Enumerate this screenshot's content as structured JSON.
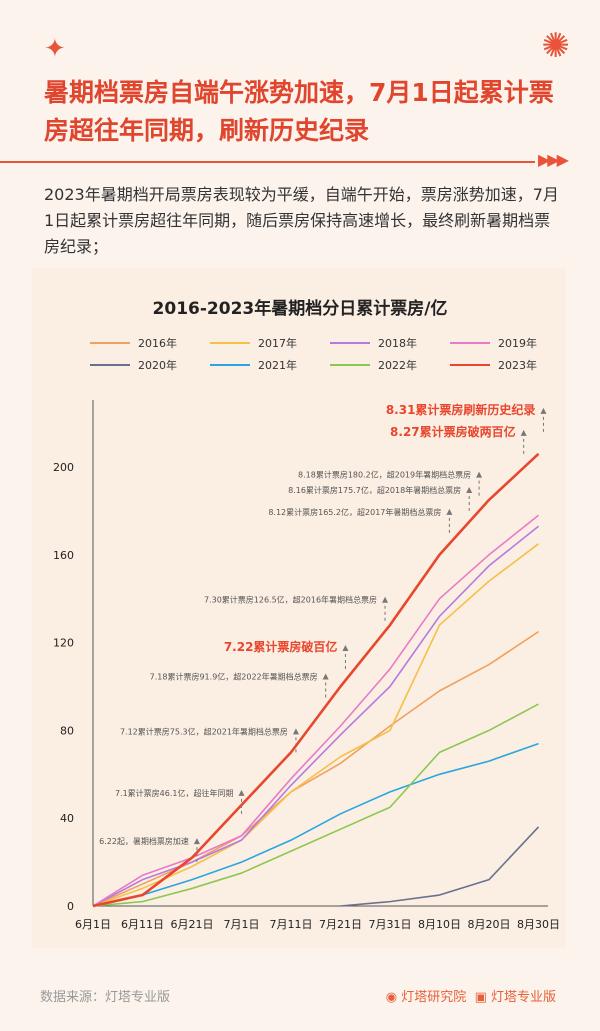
{
  "header": {
    "title": "暑期档票房自端午涨势加速，7月1日起累计票房超往年同期，刷新历史纪录",
    "intro": "2023年暑期档开局票房表现较为平缓，自端午开始，票房涨势加速，7月1日起累计票房超往年同期，随后票房保持高速增长，最终刷新暑期档票房纪录；"
  },
  "footer": {
    "source": "数据来源：灯塔专业版",
    "logo1": "灯塔研究院",
    "logo2": "灯塔专业版"
  },
  "chart_data": {
    "type": "line",
    "title": "2016-2023年暑期档分日累计票房/亿",
    "ylim": [
      0,
      220
    ],
    "yticks": [
      0,
      40,
      80,
      120,
      160,
      200
    ],
    "xticks": [
      "6月1日",
      "6月11日",
      "6月21日",
      "7月1日",
      "7月11日",
      "7月21日",
      "7月31日",
      "8月10日",
      "8月20日",
      "8月30日"
    ],
    "x_days": [
      0,
      10,
      20,
      30,
      40,
      50,
      60,
      70,
      80,
      90
    ],
    "series": [
      {
        "name": "2016年",
        "color": "#f0a060",
        "values": [
          0,
          10,
          20,
          32,
          52,
          65,
          82,
          98,
          110,
          125
        ]
      },
      {
        "name": "2017年",
        "color": "#f5c04a",
        "values": [
          0,
          8,
          18,
          30,
          52,
          68,
          80,
          128,
          148,
          165
        ]
      },
      {
        "name": "2018年",
        "color": "#b57be0",
        "values": [
          0,
          12,
          20,
          30,
          55,
          78,
          100,
          132,
          155,
          173
        ]
      },
      {
        "name": "2019年",
        "color": "#e87ac8",
        "values": [
          0,
          14,
          22,
          32,
          58,
          82,
          108,
          140,
          160,
          178
        ]
      },
      {
        "name": "2020年",
        "color": "#6a7090",
        "values": [
          null,
          null,
          null,
          null,
          null,
          0,
          2,
          5,
          12,
          36
        ]
      },
      {
        "name": "2021年",
        "color": "#2aa6e0",
        "values": [
          0,
          5,
          12,
          20,
          30,
          42,
          52,
          60,
          66,
          74
        ]
      },
      {
        "name": "2022年",
        "color": "#8cc850",
        "values": [
          0,
          2,
          8,
          15,
          25,
          35,
          45,
          70,
          80,
          92
        ]
      },
      {
        "name": "2023年",
        "color": "#e8472e",
        "values": [
          0,
          5,
          22,
          46,
          70,
          100,
          128,
          160,
          185,
          206
        ]
      }
    ],
    "annotations": [
      {
        "text": "6.22起，暑期档票房加速",
        "day": 21,
        "y": 30,
        "highlight": false
      },
      {
        "text": "7.1累计票房46.1亿，超往年同期",
        "day": 30,
        "y": 52,
        "highlight": false
      },
      {
        "text": "7.12累计票房75.3亿，超2021年暑期档总票房",
        "day": 41,
        "y": 80,
        "highlight": false
      },
      {
        "text": "7.18累计票房91.9亿，超2022年暑期档总票房",
        "day": 47,
        "y": 105,
        "highlight": false
      },
      {
        "text": "7.22累计票房破百亿",
        "day": 51,
        "y": 118,
        "highlight": true
      },
      {
        "text": "7.30累计票房126.5亿，超2016年暑期档总票房",
        "day": 59,
        "y": 140,
        "highlight": false
      },
      {
        "text": "8.12累计票房165.2亿，超2017年暑期档总票房",
        "day": 72,
        "y": 180,
        "highlight": false
      },
      {
        "text": "8.16累计票房175.7亿，超2018年暑期档总票房",
        "day": 76,
        "y": 190,
        "highlight": false
      },
      {
        "text": "8.18累计票房180.2亿，超2019年暑期档总票房",
        "day": 78,
        "y": 197,
        "highlight": false
      },
      {
        "text": "8.27累计票房破两百亿",
        "day": 87,
        "y": 216,
        "highlight": true
      },
      {
        "text": "8.31累计票房刷新历史纪录",
        "day": 91,
        "y": 226,
        "highlight": true
      }
    ]
  }
}
